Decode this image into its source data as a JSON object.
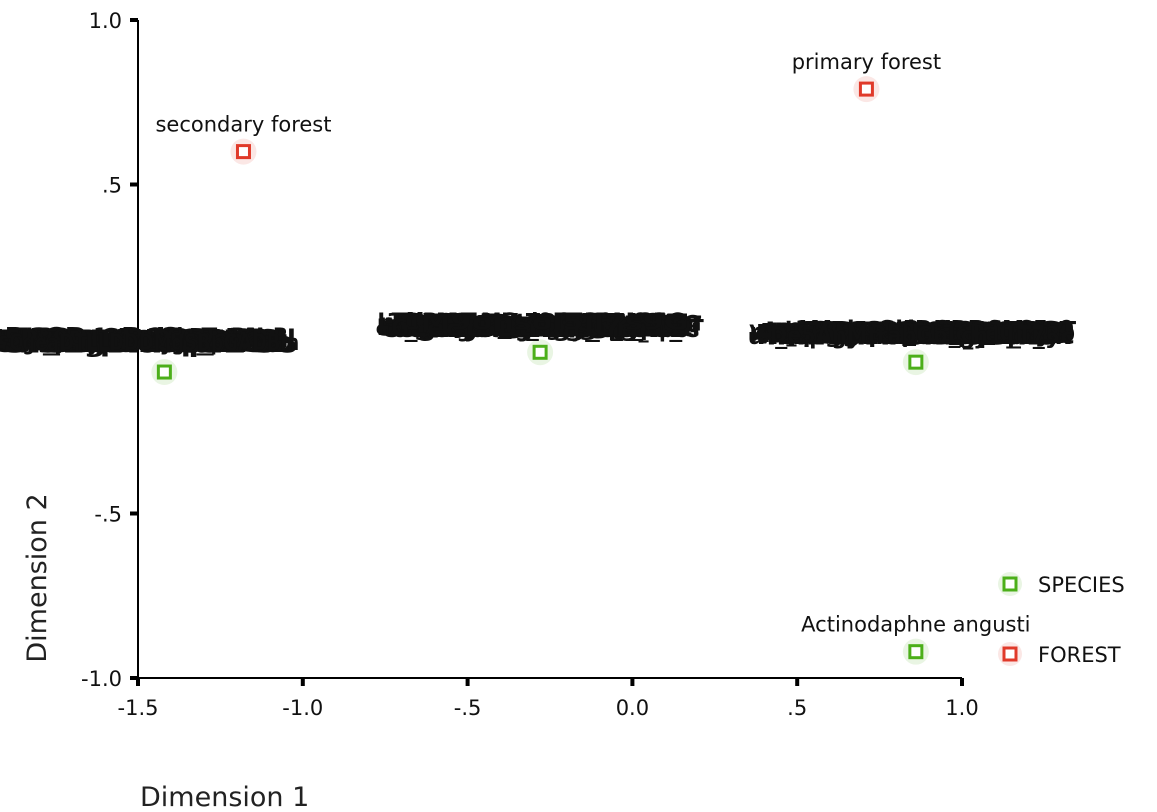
{
  "chart_data": {
    "type": "scatter",
    "title": "",
    "xlabel": "Dimension 1",
    "ylabel": "Dimension 2",
    "xlim": [
      -1.5,
      1.0
    ],
    "ylim": [
      -1.0,
      1.0
    ],
    "x_ticks": [
      {
        "value": -1.5,
        "label": "-1.5"
      },
      {
        "value": -1.0,
        "label": "-1.0"
      },
      {
        "value": -0.5,
        "label": "-.5"
      },
      {
        "value": 0.0,
        "label": "0.0"
      },
      {
        "value": 0.5,
        "label": ".5"
      },
      {
        "value": 1.0,
        "label": "1.0"
      }
    ],
    "y_ticks": [
      {
        "value": 1.0,
        "label": "1.0"
      },
      {
        "value": 0.5,
        "label": ".5"
      },
      {
        "value": -0.5,
        "label": "-.5"
      },
      {
        "value": -1.0,
        "label": "-1.0"
      }
    ],
    "grid": false,
    "legend_position": "bottom-right",
    "series": [
      {
        "name": "SPECIES",
        "color": "#4caf1a",
        "points": [
          {
            "x": -1.42,
            "y": -0.07,
            "label": "",
            "cluster": true
          },
          {
            "x": -0.28,
            "y": -0.01,
            "label": "G",
            "cluster": true
          },
          {
            "x": 0.86,
            "y": -0.04,
            "label": "",
            "cluster": true
          },
          {
            "x": 0.86,
            "y": -0.92,
            "label": "Actinodaphne angusti",
            "cluster": false
          }
        ]
      },
      {
        "name": "FOREST",
        "color": "#e03a2a",
        "points": [
          {
            "x": -1.18,
            "y": 0.6,
            "label": "secondary forest",
            "cluster": false
          },
          {
            "x": 0.71,
            "y": 0.79,
            "label": "primary forest",
            "cluster": false
          }
        ]
      }
    ]
  }
}
